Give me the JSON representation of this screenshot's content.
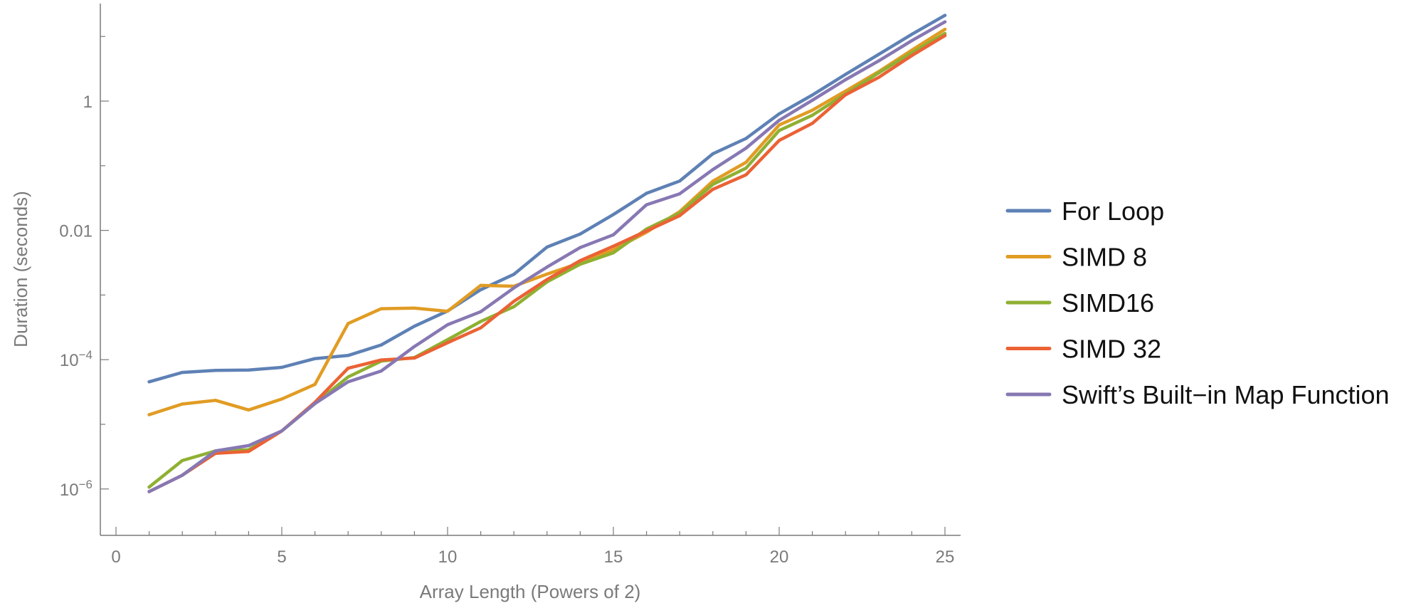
{
  "chart_data": {
    "type": "line",
    "title": "",
    "xlabel": "Array Length (Powers of 2)",
    "ylabel": "Duration (seconds)",
    "yscale": "log",
    "xlim": [
      -0.5,
      25.5
    ],
    "ylim_log10": [
      -6.7,
      1.6
    ],
    "x_ticks": [
      {
        "value": 0,
        "label": "0"
      },
      {
        "value": 5,
        "label": "5"
      },
      {
        "value": 10,
        "label": "10"
      },
      {
        "value": 15,
        "label": "15"
      },
      {
        "value": 20,
        "label": "20"
      },
      {
        "value": 25,
        "label": "25"
      }
    ],
    "y_ticks": [
      {
        "log10": -6,
        "base": "10",
        "exp": "−6"
      },
      {
        "log10": -4,
        "base": "10",
        "exp": "−4"
      },
      {
        "log10": -2,
        "base": "0.01",
        "exp": ""
      },
      {
        "log10": 0,
        "base": "1",
        "exp": ""
      }
    ],
    "legend_position": "right",
    "x": [
      1,
      2,
      3,
      4,
      5,
      6,
      7,
      8,
      9,
      10,
      11,
      12,
      13,
      14,
      15,
      16,
      17,
      18,
      19,
      20,
      21,
      22,
      23,
      24,
      25
    ],
    "series": [
      {
        "name": "For Loop",
        "color": "#5e81b5",
        "values": [
          4.55e-05,
          6.35e-05,
          6.84e-05,
          6.91e-05,
          7.61e-05,
          0.000104,
          0.000116,
          0.000169,
          0.000329,
          0.000567,
          0.00121,
          0.00209,
          0.00552,
          0.00878,
          0.0176,
          0.0375,
          0.0579,
          0.153,
          0.264,
          0.635,
          1.24,
          2.59,
          5.28,
          10.8,
          21.2
        ]
      },
      {
        "name": "SIMD 8",
        "color": "#e19c24",
        "values": [
          1.41e-05,
          2.06e-05,
          2.35e-05,
          1.67e-05,
          2.46e-05,
          4.15e-05,
          0.000363,
          0.000614,
          0.000627,
          0.000561,
          0.00141,
          0.00137,
          0.00211,
          0.00315,
          0.00499,
          0.00938,
          0.0195,
          0.0578,
          0.113,
          0.427,
          0.723,
          1.43,
          2.86,
          6.14,
          12.9
        ]
      },
      {
        "name": "SIMD16",
        "color": "#8fb032",
        "values": [
          1.07e-06,
          2.75e-06,
          3.87e-06,
          4.04e-06,
          7.9e-06,
          2.09e-05,
          5.4e-05,
          9.5e-05,
          0.000108,
          0.000204,
          0.00039,
          0.00066,
          0.0016,
          0.003,
          0.0045,
          0.0105,
          0.0185,
          0.0515,
          0.0917,
          0.351,
          0.603,
          1.29,
          2.73,
          5.6,
          11.1
        ]
      },
      {
        "name": "SIMD 32",
        "color": "#eb6235",
        "values": [
          9.1e-07,
          1.63e-06,
          3.56e-06,
          3.81e-06,
          7.9e-06,
          2.19e-05,
          7.37e-05,
          9.9e-05,
          0.000106,
          0.000183,
          0.000311,
          0.000797,
          0.00174,
          0.0034,
          0.0057,
          0.0098,
          0.0169,
          0.0432,
          0.0723,
          0.246,
          0.452,
          1.25,
          2.32,
          5.05,
          10.3
        ]
      },
      {
        "name": "Swift’s Built−in Map Function",
        "color": "#8778b3",
        "values": [
          9.1e-07,
          1.63e-06,
          3.87e-06,
          4.68e-06,
          7.9e-06,
          2.09e-05,
          4.55e-05,
          6.69e-05,
          0.00016,
          0.000347,
          0.000553,
          0.00129,
          0.00271,
          0.00543,
          0.00855,
          0.0249,
          0.0368,
          0.0872,
          0.187,
          0.504,
          1.03,
          2.14,
          4.18,
          8.6,
          16.8
        ]
      }
    ]
  }
}
